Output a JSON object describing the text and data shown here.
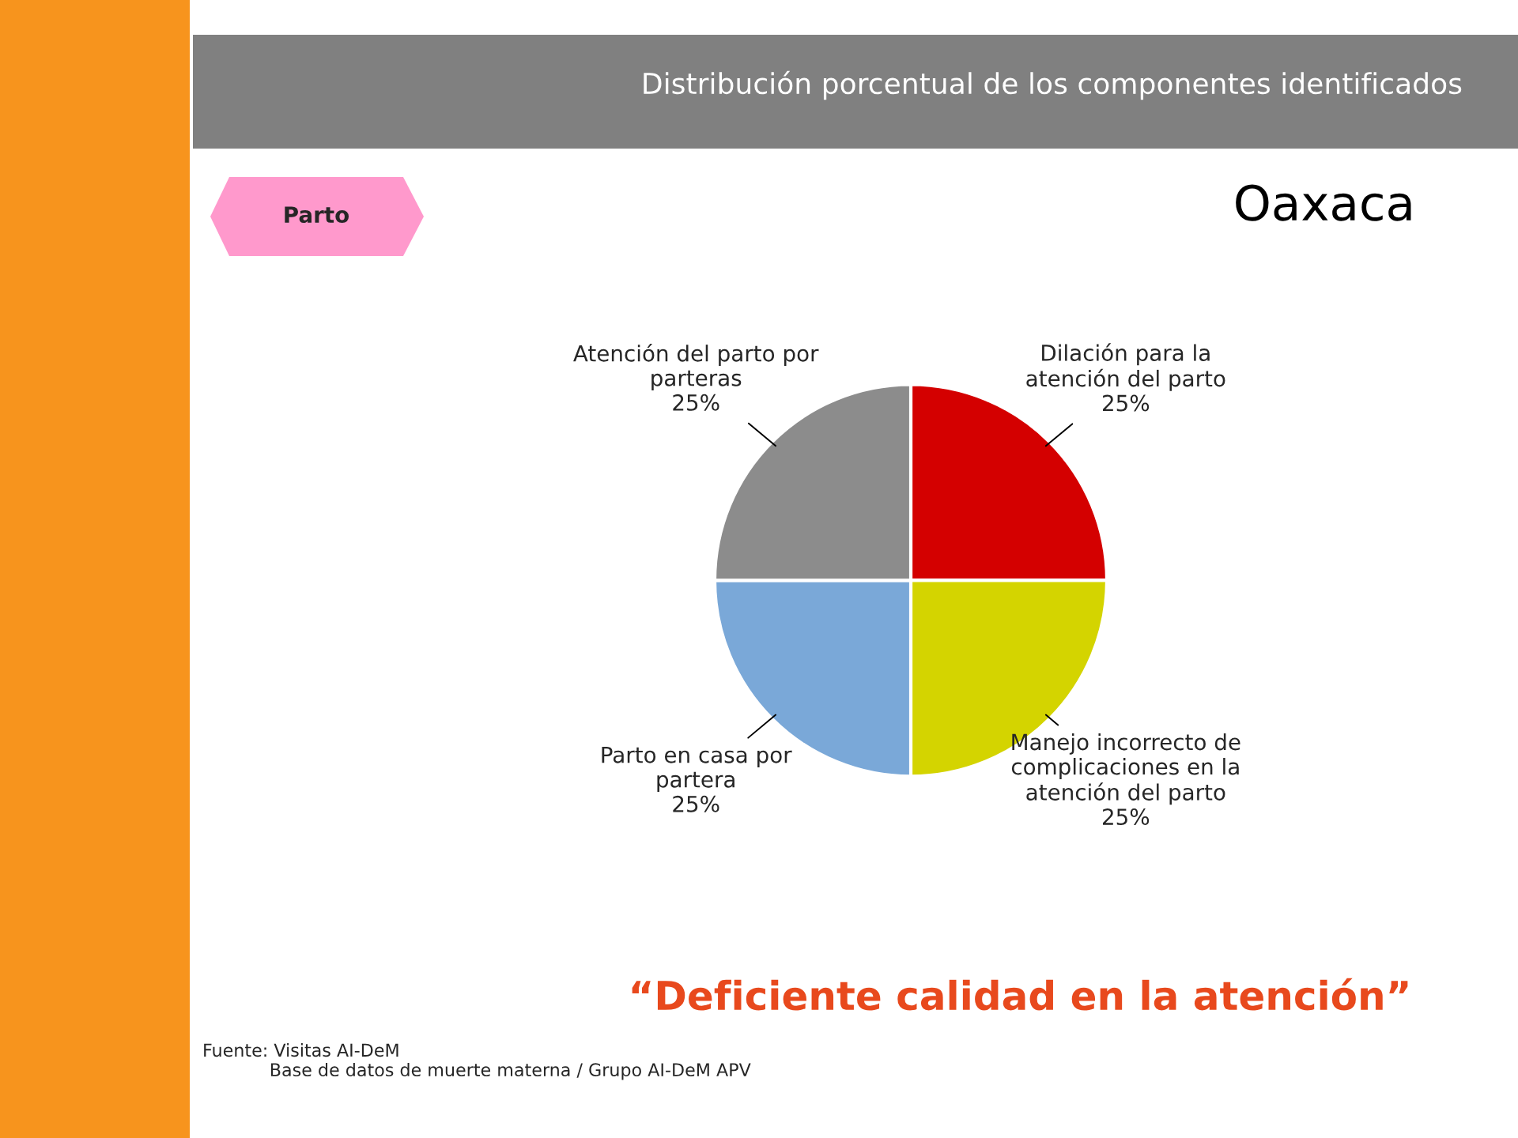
{
  "chart_data": {
    "type": "pie",
    "title": "Distribución porcentual de los componentes identificados",
    "subtitle": "Oaxaca",
    "categories": [
      "Dilación para la\natención del parto",
      "Manejo incorrecto de\ncomplicaciones en la\natención del parto",
      "Parto en casa por\npartera",
      "Atención del parto por\nparteras"
    ],
    "values": [
      25,
      25,
      25,
      25
    ],
    "colors": [
      "#d40000",
      "#d4d400",
      "#7aa8d8",
      "#8c8c8c"
    ],
    "value_labels": [
      "25%",
      "25%",
      "25%",
      "25%"
    ],
    "legend": false,
    "annotations": [
      "Parto",
      "“Deficiente calidad en la atención”",
      "Fuente: Visitas AI-DeM\n            Base de datos de muerte materna / Grupo AI-DeM APV"
    ]
  }
}
